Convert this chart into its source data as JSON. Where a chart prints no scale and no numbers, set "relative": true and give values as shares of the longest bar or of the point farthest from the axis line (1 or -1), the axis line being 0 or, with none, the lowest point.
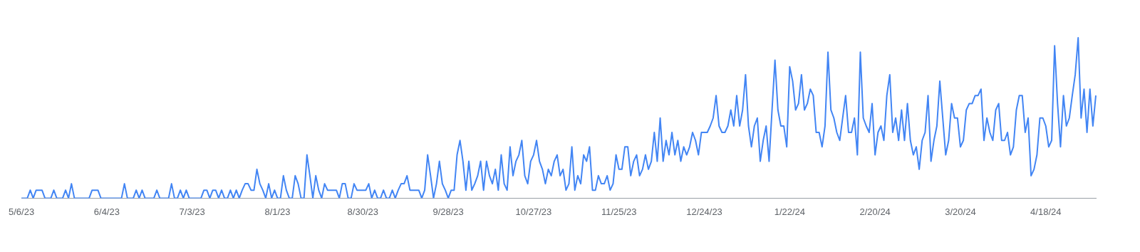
{
  "chart_data": {
    "type": "line",
    "relative": true,
    "color": "#4285f4",
    "categories": [
      "5/6/23",
      null,
      null,
      null,
      null,
      null,
      null,
      null,
      null,
      null,
      null,
      null,
      null,
      null,
      null,
      null,
      null,
      null,
      null,
      null,
      null,
      null,
      null,
      null,
      null,
      null,
      null,
      null,
      null,
      "6/4/23",
      null,
      null,
      null,
      null,
      null,
      null,
      null,
      null,
      null,
      null,
      null,
      null,
      null,
      null,
      null,
      null,
      null,
      null,
      null,
      null,
      null,
      null,
      null,
      null,
      null,
      null,
      null,
      null,
      "7/3/23",
      null,
      null,
      null,
      null,
      null,
      null,
      null,
      null,
      null,
      null,
      null,
      null,
      null,
      null,
      null,
      null,
      null,
      null,
      null,
      null,
      null,
      null,
      null,
      null,
      null,
      null,
      null,
      null,
      "8/1/23",
      null,
      null,
      null,
      null,
      null,
      null,
      null,
      null,
      null,
      null,
      null,
      null,
      null,
      null,
      null,
      null,
      null,
      null,
      null,
      null,
      null,
      null,
      null,
      null,
      null,
      null,
      null,
      null,
      "8/30/23",
      null,
      null,
      null,
      null,
      null,
      null,
      null,
      null,
      null,
      null,
      null,
      null,
      null,
      null,
      null,
      null,
      null,
      null,
      null,
      null,
      null,
      null,
      null,
      null,
      null,
      null,
      null,
      null,
      "9/28/23",
      null,
      null,
      null,
      null,
      null,
      null,
      null,
      null,
      null,
      null,
      null,
      null,
      null,
      null,
      null,
      null,
      null,
      null,
      null,
      null,
      null,
      null,
      null,
      null,
      null,
      null,
      null,
      null,
      "10/27/23",
      null,
      null,
      null,
      null,
      null,
      null,
      null,
      null,
      null,
      null,
      null,
      null,
      null,
      null,
      null,
      null,
      null,
      null,
      null,
      null,
      null,
      null,
      null,
      null,
      null,
      null,
      null,
      null,
      "11/25/23",
      null,
      null,
      null,
      null,
      null,
      null,
      null,
      null,
      null,
      null,
      null,
      null,
      null,
      null,
      null,
      null,
      null,
      null,
      null,
      null,
      null,
      null,
      null,
      null,
      null,
      null,
      null,
      null,
      "12/24/23",
      null,
      null,
      null,
      null,
      null,
      null,
      null,
      null,
      null,
      null,
      null,
      null,
      null,
      null,
      null,
      null,
      null,
      null,
      null,
      null,
      null,
      null,
      null,
      null,
      null,
      null,
      null,
      null,
      "1/22/24",
      null,
      null,
      null,
      null,
      null,
      null,
      null,
      null,
      null,
      null,
      null,
      null,
      null,
      null,
      null,
      null,
      null,
      null,
      null,
      null,
      null,
      null,
      null,
      null,
      null,
      null,
      null,
      null,
      "2/20/24",
      null,
      null,
      null,
      null,
      null,
      null,
      null,
      null,
      null,
      null,
      null,
      null,
      null,
      null,
      null,
      null,
      null,
      null,
      null,
      null,
      null,
      null,
      null,
      null,
      null,
      null,
      null,
      null,
      "3/20/24",
      null,
      null,
      null,
      null,
      null,
      null,
      null,
      null,
      null,
      null,
      null,
      null,
      null,
      null,
      null,
      null,
      null,
      null,
      null,
      null,
      null,
      null,
      null,
      null,
      null,
      null,
      null,
      null,
      "4/18/24",
      null,
      null,
      null,
      null,
      null,
      null,
      null,
      null,
      null,
      null,
      null,
      null,
      null,
      null,
      null,
      null,
      null
    ],
    "values": [
      0,
      0,
      0,
      0.05,
      0,
      0.05,
      0.05,
      0.05,
      0,
      0,
      0,
      0.05,
      0,
      0,
      0,
      0.05,
      0,
      0.09,
      0,
      0,
      0,
      0,
      0,
      0,
      0.05,
      0.05,
      0.05,
      0,
      0,
      0,
      0,
      0,
      0,
      0,
      0,
      0.09,
      0,
      0,
      0,
      0.05,
      0,
      0.05,
      0,
      0,
      0,
      0,
      0.05,
      0,
      0,
      0,
      0,
      0.09,
      0,
      0,
      0.05,
      0,
      0.05,
      0,
      0,
      0,
      0,
      0,
      0.05,
      0.05,
      0,
      0.05,
      0.05,
      0,
      0.05,
      0,
      0,
      0.05,
      0,
      0.05,
      0,
      0.05,
      0.09,
      0.09,
      0.05,
      0.05,
      0.18,
      0.09,
      0.05,
      0,
      0.09,
      0,
      0.05,
      0,
      0,
      0.14,
      0.05,
      0,
      0,
      0.14,
      0.09,
      0,
      0,
      0.27,
      0.14,
      0,
      0.14,
      0.05,
      0,
      0.09,
      0.05,
      0.05,
      0.05,
      0.05,
      0,
      0.09,
      0.09,
      0,
      0,
      0.09,
      0.05,
      0.05,
      0.05,
      0.05,
      0.09,
      0,
      0.05,
      0,
      0,
      0.05,
      0,
      0,
      0.05,
      0,
      0.05,
      0.09,
      0.09,
      0.14,
      0.05,
      0.05,
      0.05,
      0.05,
      0,
      0.05,
      0.27,
      0.14,
      0,
      0.09,
      0.23,
      0.09,
      0.05,
      0,
      0.05,
      0.05,
      0.27,
      0.36,
      0.23,
      0.05,
      0.23,
      0.05,
      0.09,
      0.14,
      0.23,
      0.05,
      0.23,
      0.14,
      0.09,
      0.18,
      0.05,
      0.27,
      0.09,
      0.05,
      0.32,
      0.14,
      0.23,
      0.27,
      0.36,
      0.14,
      0.09,
      0.23,
      0.27,
      0.36,
      0.23,
      0.18,
      0.09,
      0.18,
      0.14,
      0.23,
      0.27,
      0.14,
      0.18,
      0.05,
      0.09,
      0.32,
      0.05,
      0.14,
      0.09,
      0.27,
      0.23,
      0.32,
      0.05,
      0.05,
      0.14,
      0.09,
      0.09,
      0.14,
      0.05,
      0.09,
      0.27,
      0.18,
      0.18,
      0.32,
      0.32,
      0.14,
      0.23,
      0.27,
      0.14,
      0.18,
      0.27,
      0.18,
      0.23,
      0.41,
      0.23,
      0.5,
      0.23,
      0.36,
      0.27,
      0.41,
      0.27,
      0.36,
      0.23,
      0.32,
      0.27,
      0.32,
      0.41,
      0.36,
      0.27,
      0.41,
      0.41,
      0.41,
      0.45,
      0.5,
      0.64,
      0.45,
      0.41,
      0.41,
      0.45,
      0.55,
      0.45,
      0.64,
      0.45,
      0.55,
      0.77,
      0.45,
      0.32,
      0.45,
      0.5,
      0.23,
      0.36,
      0.45,
      0.23,
      0.55,
      0.86,
      0.55,
      0.45,
      0.45,
      0.32,
      0.82,
      0.73,
      0.55,
      0.59,
      0.77,
      0.55,
      0.59,
      0.68,
      0.64,
      0.41,
      0.41,
      0.32,
      0.45,
      0.91,
      0.55,
      0.5,
      0.41,
      0.36,
      0.5,
      0.64,
      0.41,
      0.41,
      0.5,
      0.27,
      0.91,
      0.5,
      0.45,
      0.41,
      0.59,
      0.27,
      0.41,
      0.45,
      0.36,
      0.64,
      0.77,
      0.41,
      0.5,
      0.36,
      0.55,
      0.36,
      0.59,
      0.36,
      0.27,
      0.32,
      0.18,
      0.36,
      0.41,
      0.64,
      0.23,
      0.36,
      0.45,
      0.73,
      0.5,
      0.27,
      0.36,
      0.59,
      0.5,
      0.5,
      0.32,
      0.36,
      0.55,
      0.59,
      0.59,
      0.64,
      0.64,
      0.68,
      0.36,
      0.5,
      0.41,
      0.36,
      0.55,
      0.59,
      0.36,
      0.36,
      0.41,
      0.27,
      0.32,
      0.55,
      0.64,
      0.64,
      0.41,
      0.5,
      0.14,
      0.18,
      0.27,
      0.5,
      0.5,
      0.45,
      0.32,
      0.36,
      0.95,
      0.59,
      0.32,
      0.64,
      0.45,
      0.5,
      0.64,
      0.77,
      1,
      0.5,
      0.68,
      0.41,
      0.68,
      0.45,
      0.64
    ]
  }
}
